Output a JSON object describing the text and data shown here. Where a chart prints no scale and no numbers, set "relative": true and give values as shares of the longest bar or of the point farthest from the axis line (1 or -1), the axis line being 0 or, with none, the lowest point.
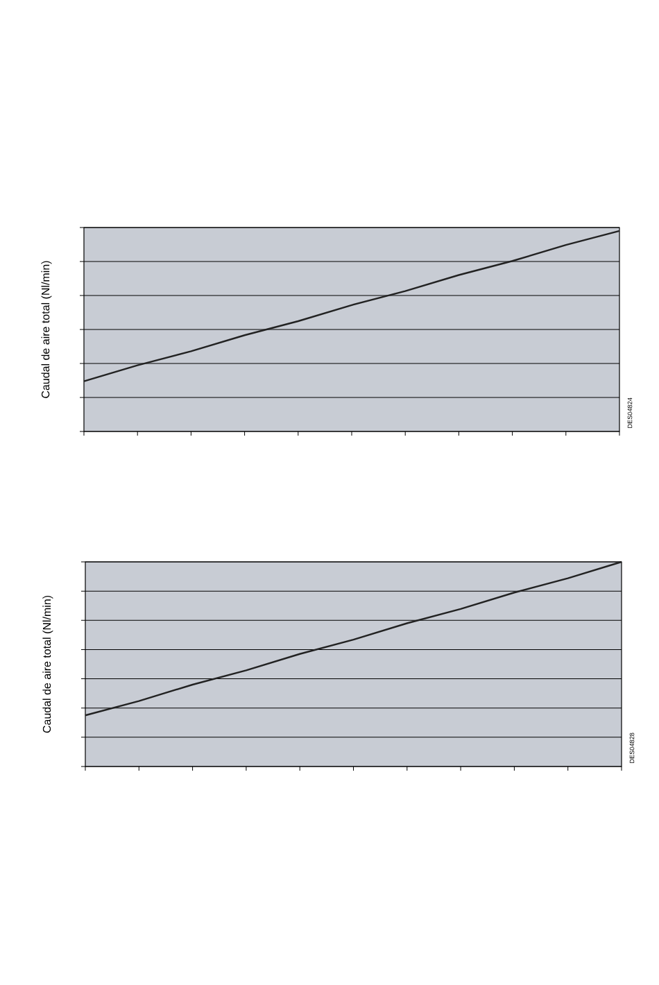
{
  "chart_data": [
    {
      "type": "line",
      "relative": true,
      "ylabel": "Caudal de aire total (Nl/min)",
      "annotations": [
        "DES04824"
      ],
      "grid": "y",
      "tick_labels": false,
      "categories": [
        null,
        null,
        null,
        null,
        null,
        null,
        null,
        null,
        null,
        null,
        null
      ],
      "series": [
        {
          "color": "#222222",
          "values": [
            0.25,
            0.33,
            0.4,
            0.48,
            0.55,
            0.63,
            0.7,
            0.78,
            0.85,
            0.93,
            1
          ]
        }
      ]
    },
    {
      "type": "line",
      "relative": true,
      "ylabel": "Caudal de aire total (Nl/min)",
      "annotations": [
        "DES04828"
      ],
      "grid": "y",
      "tick_labels": false,
      "categories": [
        null,
        null,
        null,
        null,
        null,
        null,
        null,
        null,
        null,
        null,
        null
      ],
      "series": [
        {
          "color": "#222222",
          "values": [
            0.25,
            0.32,
            0.4,
            0.47,
            0.55,
            0.62,
            0.7,
            0.77,
            0.85,
            0.92,
            1
          ]
        }
      ]
    }
  ]
}
